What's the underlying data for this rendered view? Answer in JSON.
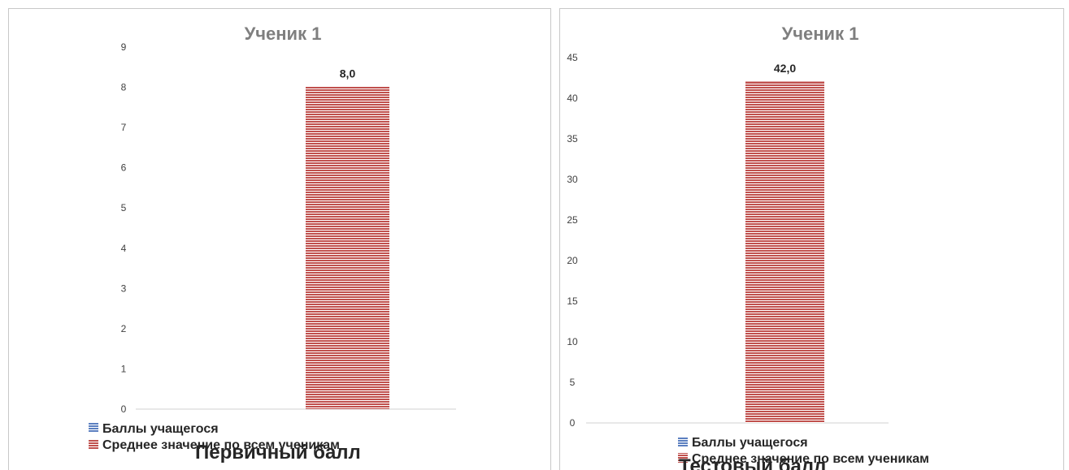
{
  "chart_data": [
    {
      "type": "bar",
      "title": "Ученик 1",
      "categories": [
        ""
      ],
      "series": [
        {
          "name": "Баллы учащегося",
          "values": [
            0
          ],
          "color": "#5b7fc0"
        },
        {
          "name": "Среднее значение по всем ученикам",
          "values": [
            8.0
          ],
          "color": "#c0504d"
        }
      ],
      "data_labels": [
        "8,0"
      ],
      "y_ticks": [
        "0",
        "1",
        "2",
        "3",
        "4",
        "5",
        "6",
        "7",
        "8",
        "9"
      ],
      "ylim": [
        0,
        9
      ],
      "legend_position": "bottom",
      "caption": "Первичный балл"
    },
    {
      "type": "bar",
      "title": "Ученик 1",
      "categories": [
        ""
      ],
      "series": [
        {
          "name": "Баллы учащегося",
          "values": [
            0
          ],
          "color": "#5b7fc0"
        },
        {
          "name": "Среднее значение по всем ученикам",
          "values": [
            42.0
          ],
          "color": "#c0504d"
        }
      ],
      "data_labels": [
        "42,0"
      ],
      "y_ticks": [
        "0",
        "5",
        "10",
        "15",
        "20",
        "25",
        "30",
        "35",
        "40",
        "45"
      ],
      "ylim": [
        0,
        45
      ],
      "legend_position": "bottom",
      "caption": "Тестовый балл"
    }
  ]
}
